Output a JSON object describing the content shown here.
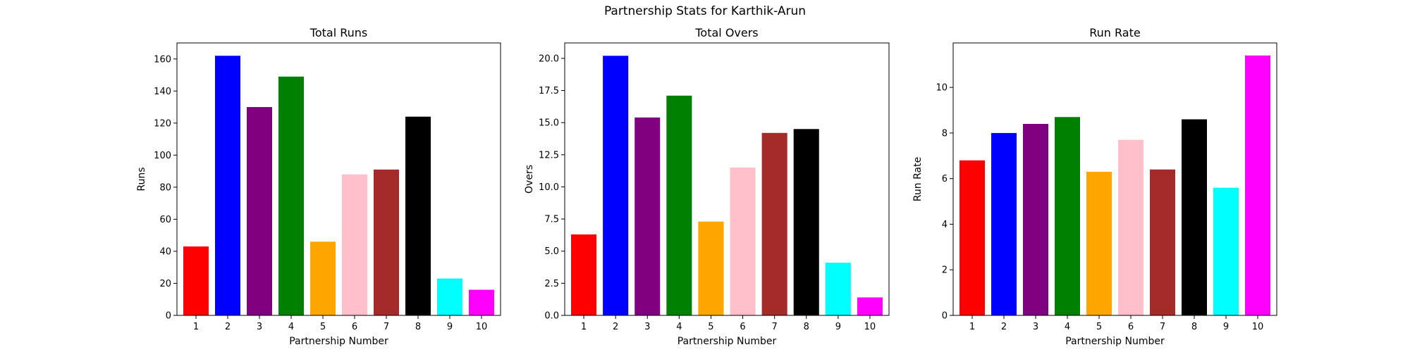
{
  "figure": {
    "title": "Partnership Stats for Karthik-Arun"
  },
  "chart_data": [
    {
      "type": "bar",
      "title": "Total Runs",
      "xlabel": "Partnership Number",
      "ylabel": "Runs",
      "categories": [
        "1",
        "2",
        "3",
        "4",
        "5",
        "6",
        "7",
        "8",
        "9",
        "10"
      ],
      "values": [
        43,
        162,
        130,
        149,
        46,
        88,
        91,
        124,
        23,
        16
      ],
      "colors": [
        "#ff0000",
        "#0000ff",
        "#800080",
        "#008000",
        "#ffa500",
        "#ffc0cb",
        "#a52a2a",
        "#000000",
        "#00ffff",
        "#ff00ff"
      ],
      "ylim": [
        0,
        170
      ],
      "yticks": [
        0,
        20,
        40,
        60,
        80,
        100,
        120,
        140,
        160
      ],
      "ytick_labels": [
        "0",
        "20",
        "40",
        "60",
        "80",
        "100",
        "120",
        "140",
        "160"
      ]
    },
    {
      "type": "bar",
      "title": "Total Overs",
      "xlabel": "Partnership Number",
      "ylabel": "Overs",
      "categories": [
        "1",
        "2",
        "3",
        "4",
        "5",
        "6",
        "7",
        "8",
        "9",
        "10"
      ],
      "values": [
        6.3,
        20.2,
        15.4,
        17.1,
        7.3,
        11.5,
        14.2,
        14.5,
        4.1,
        1.4
      ],
      "colors": [
        "#ff0000",
        "#0000ff",
        "#800080",
        "#008000",
        "#ffa500",
        "#ffc0cb",
        "#a52a2a",
        "#000000",
        "#00ffff",
        "#ff00ff"
      ],
      "ylim": [
        0,
        21.2
      ],
      "yticks": [
        0,
        2.5,
        5,
        7.5,
        10,
        12.5,
        15,
        17.5,
        20
      ],
      "ytick_labels": [
        "0.0",
        "2.5",
        "5.0",
        "7.5",
        "10.0",
        "12.5",
        "15.0",
        "17.5",
        "20.0"
      ]
    },
    {
      "type": "bar",
      "title": "Run Rate",
      "xlabel": "Partnership Number",
      "ylabel": "Run Rate",
      "categories": [
        "1",
        "2",
        "3",
        "4",
        "5",
        "6",
        "7",
        "8",
        "9",
        "10"
      ],
      "values": [
        6.8,
        8.0,
        8.4,
        8.7,
        6.3,
        7.7,
        6.4,
        8.6,
        5.6,
        11.4
      ],
      "colors": [
        "#ff0000",
        "#0000ff",
        "#800080",
        "#008000",
        "#ffa500",
        "#ffc0cb",
        "#a52a2a",
        "#000000",
        "#00ffff",
        "#ff00ff"
      ],
      "ylim": [
        0,
        11.95
      ],
      "yticks": [
        0,
        2,
        4,
        6,
        8,
        10
      ],
      "ytick_labels": [
        "0",
        "2",
        "4",
        "6",
        "8",
        "10"
      ]
    }
  ]
}
